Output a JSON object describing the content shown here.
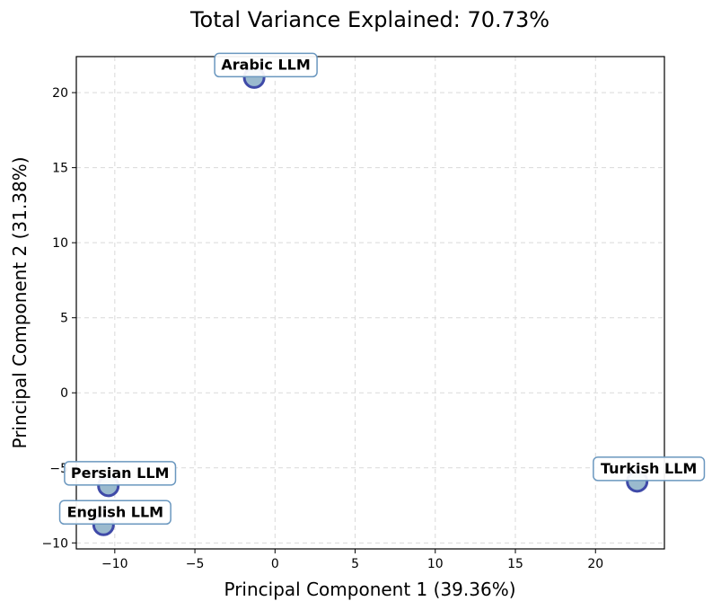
{
  "chart_data": {
    "type": "scatter",
    "title": "Total Variance Explained: 70.73%",
    "xlabel": "Principal Component 1 (39.36%)",
    "ylabel": "Principal Component 2 (31.38%)",
    "xlim": [
      -12.4,
      24.3
    ],
    "ylim": [
      -10.4,
      22.4
    ],
    "xticks": [
      -10,
      -5,
      0,
      5,
      10,
      15,
      20
    ],
    "yticks": [
      -10,
      -5,
      0,
      5,
      10,
      15,
      20
    ],
    "grid": true,
    "points": [
      {
        "label": "Arabic LLM",
        "x": -1.3,
        "y": 21.0
      },
      {
        "label": "Persian LLM",
        "x": -10.4,
        "y": -6.2
      },
      {
        "label": "English LLM",
        "x": -10.7,
        "y": -8.8
      },
      {
        "label": "Turkish LLM",
        "x": 22.6,
        "y": -5.9
      }
    ],
    "colors": {
      "marker_fill": "#8fb3c9",
      "marker_edge": "#3f4aa8",
      "label_box_edge": "#6a97bf",
      "grid": "#d9d9d9"
    }
  }
}
